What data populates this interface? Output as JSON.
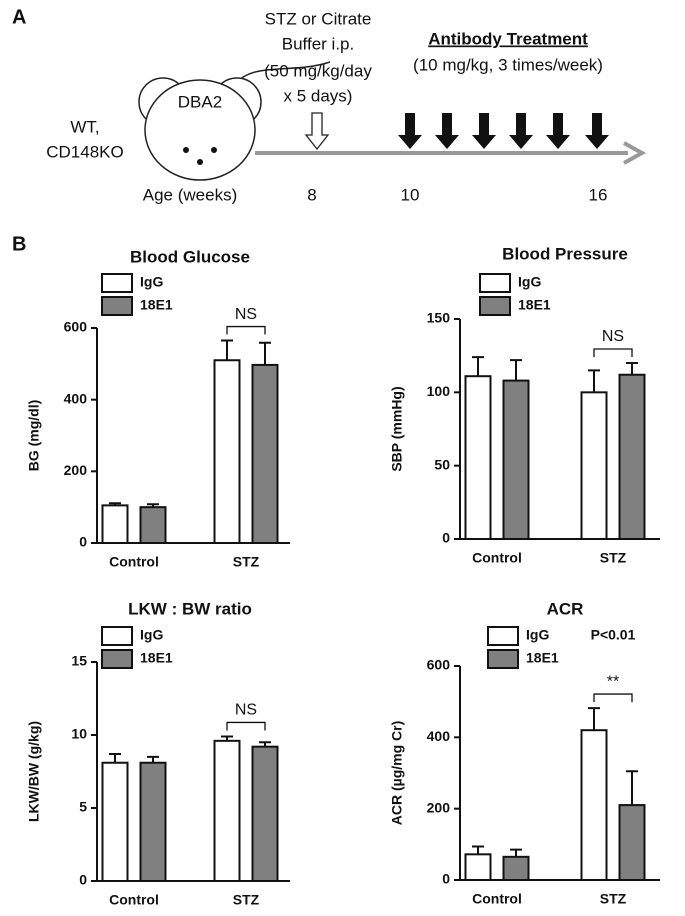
{
  "panel_a": {
    "label": "A",
    "mouse_label": "DBA2",
    "genotype": [
      "WT,",
      "CD148KO"
    ],
    "stz_text": [
      "STZ or Citrate",
      "Buffer i.p.",
      "(50 mg/kg/day",
      "x 5 days)"
    ],
    "treatment_title": "Antibody Treatment",
    "treatment_detail": "(10 mg/kg, 3 times/week)",
    "age_label": "Age (weeks)",
    "ages": [
      8,
      10,
      16
    ]
  },
  "panel_b_label": "B",
  "chart_data": [
    {
      "type": "bar",
      "title": "Blood Glucose",
      "ylabel": "BG (mg/dl)",
      "categories": [
        "Control",
        "STZ"
      ],
      "series": [
        {
          "name": "IgG",
          "color": "#ffffff",
          "values": [
            105,
            510
          ],
          "errors": [
            6,
            55
          ]
        },
        {
          "name": "18E1",
          "color": "#808080",
          "values": [
            100,
            497
          ],
          "errors": [
            8,
            62
          ]
        }
      ],
      "ylim": [
        0,
        600
      ],
      "yticks": [
        0,
        200,
        400,
        600
      ],
      "significance": "NS"
    },
    {
      "type": "bar",
      "title": "Blood Pressure",
      "ylabel": "SBP (mmHg)",
      "categories": [
        "Control",
        "STZ"
      ],
      "series": [
        {
          "name": "IgG",
          "color": "#ffffff",
          "values": [
            111,
            100
          ],
          "errors": [
            13,
            15
          ]
        },
        {
          "name": "18E1",
          "color": "#808080",
          "values": [
            108,
            112
          ],
          "errors": [
            14,
            8
          ]
        }
      ],
      "ylim": [
        0,
        150
      ],
      "yticks": [
        0,
        50,
        100,
        150
      ],
      "significance": "NS"
    },
    {
      "type": "bar",
      "title": "LKW : BW ratio",
      "ylabel": "LKW/BW (g/kg)",
      "categories": [
        "Control",
        "STZ"
      ],
      "series": [
        {
          "name": "IgG",
          "color": "#ffffff",
          "values": [
            8.1,
            9.6
          ],
          "errors": [
            0.6,
            0.3
          ]
        },
        {
          "name": "18E1",
          "color": "#808080",
          "values": [
            8.1,
            9.2
          ],
          "errors": [
            0.4,
            0.3
          ]
        }
      ],
      "ylim": [
        0,
        15
      ],
      "yticks": [
        0,
        5,
        10,
        15
      ],
      "significance": "NS"
    },
    {
      "type": "bar",
      "title": "ACR",
      "ylabel": "ACR (µg/mg Cr)",
      "categories": [
        "Control",
        "STZ"
      ],
      "series": [
        {
          "name": "IgG",
          "color": "#ffffff",
          "values": [
            72,
            420
          ],
          "errors": [
            22,
            62
          ]
        },
        {
          "name": "18E1",
          "color": "#808080",
          "values": [
            65,
            210
          ],
          "errors": [
            20,
            95
          ]
        }
      ],
      "ylim": [
        0,
        600
      ],
      "yticks": [
        0,
        200,
        400,
        600
      ],
      "significance": "**",
      "p_value_label": "P<0.01"
    }
  ]
}
